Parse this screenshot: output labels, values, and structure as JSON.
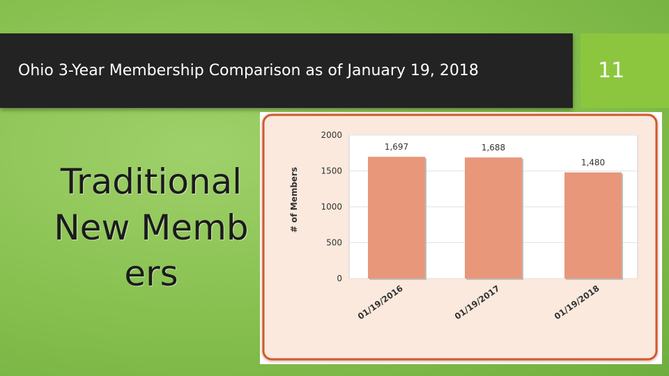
{
  "slide": {
    "title": "Ohio 3-Year Membership Comparison as of January 19, 2018",
    "page_number": "11",
    "subtitle": "Traditional New Members"
  },
  "chart_data": {
    "type": "bar",
    "categories": [
      "01/19/2016",
      "01/19/2017",
      "01/19/2018"
    ],
    "values": [
      1697,
      1688,
      1480
    ],
    "data_labels": [
      "1,697",
      "1,688",
      "1,480"
    ],
    "ylabel": "# of Members",
    "ylim": [
      0,
      2000
    ],
    "yticks": [
      "0",
      "500",
      "1000",
      "1500",
      "2000"
    ],
    "grid": true,
    "colors": {
      "bar": "#e8977a",
      "frame_border": "#d2592f",
      "frame_fill": "#fbe9dd",
      "plot_bg": "#ffffff"
    }
  }
}
